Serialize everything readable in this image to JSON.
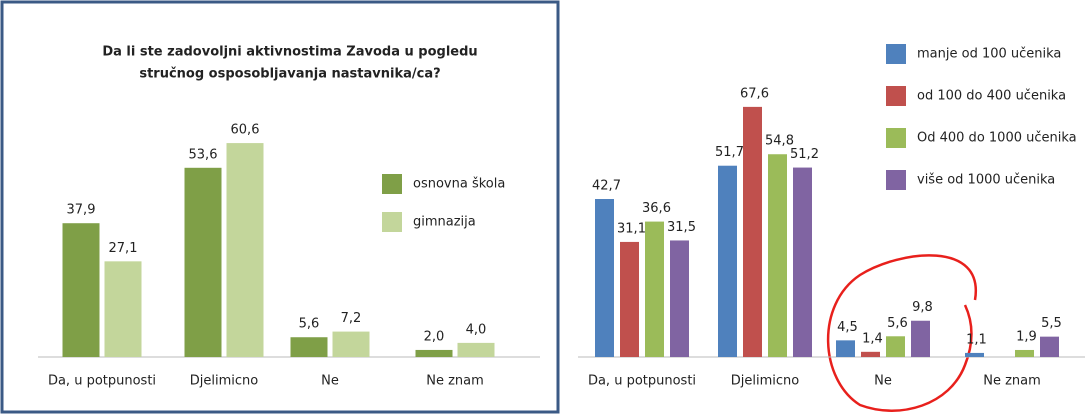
{
  "chart_data": [
    {
      "type": "bar",
      "title": [
        "Da li ste zadovoljni aktivnostima Zavoda u pogledu",
        "stručnog osposobljavanja  nastavnika/ca?"
      ],
      "categories": [
        "Da, u potpunosti",
        "Djelimicno",
        "Ne",
        "Ne znam"
      ],
      "series": [
        {
          "name": "osnovna škola",
          "color": "#7f9f47",
          "values": [
            37.9,
            53.6,
            5.6,
            2.0
          ],
          "value_labels": [
            "37,9",
            "53,6",
            "5,6",
            "2,0"
          ]
        },
        {
          "name": "gimnazija",
          "color": "#c3d69b",
          "values": [
            27.1,
            60.6,
            7.2,
            4.0
          ],
          "value_labels": [
            "27,1",
            "60,6",
            "7,2",
            "4,0"
          ]
        }
      ]
    },
    {
      "type": "bar",
      "categories": [
        "Da, u potpunosti",
        "Djelimicno",
        "Ne",
        "Ne znam"
      ],
      "series": [
        {
          "name": "manje od 100 učenika",
          "color": "#4f81bd",
          "values": [
            42.7,
            51.7,
            4.5,
            1.1
          ],
          "value_labels": [
            "42,7",
            "51,7",
            "4,5",
            "1,1"
          ]
        },
        {
          "name": "od 100 do 400 učenika",
          "color": "#c0504d",
          "values": [
            31.1,
            67.6,
            1.4,
            null
          ],
          "value_labels": [
            "31,1",
            "67,6",
            "1,4",
            null
          ]
        },
        {
          "name": "Od 400 do 1000 učenika",
          "color": "#9bbb59",
          "values": [
            36.6,
            54.8,
            5.6,
            1.9
          ],
          "value_labels": [
            "36,6",
            "54,8",
            "5,6",
            "1,9"
          ]
        },
        {
          "name": "više od 1000 učenika",
          "color": "#8064a2",
          "values": [
            31.5,
            51.2,
            9.8,
            5.5
          ],
          "value_labels": [
            "31,5",
            "51,2",
            "9,8",
            "5,5"
          ]
        }
      ]
    }
  ]
}
